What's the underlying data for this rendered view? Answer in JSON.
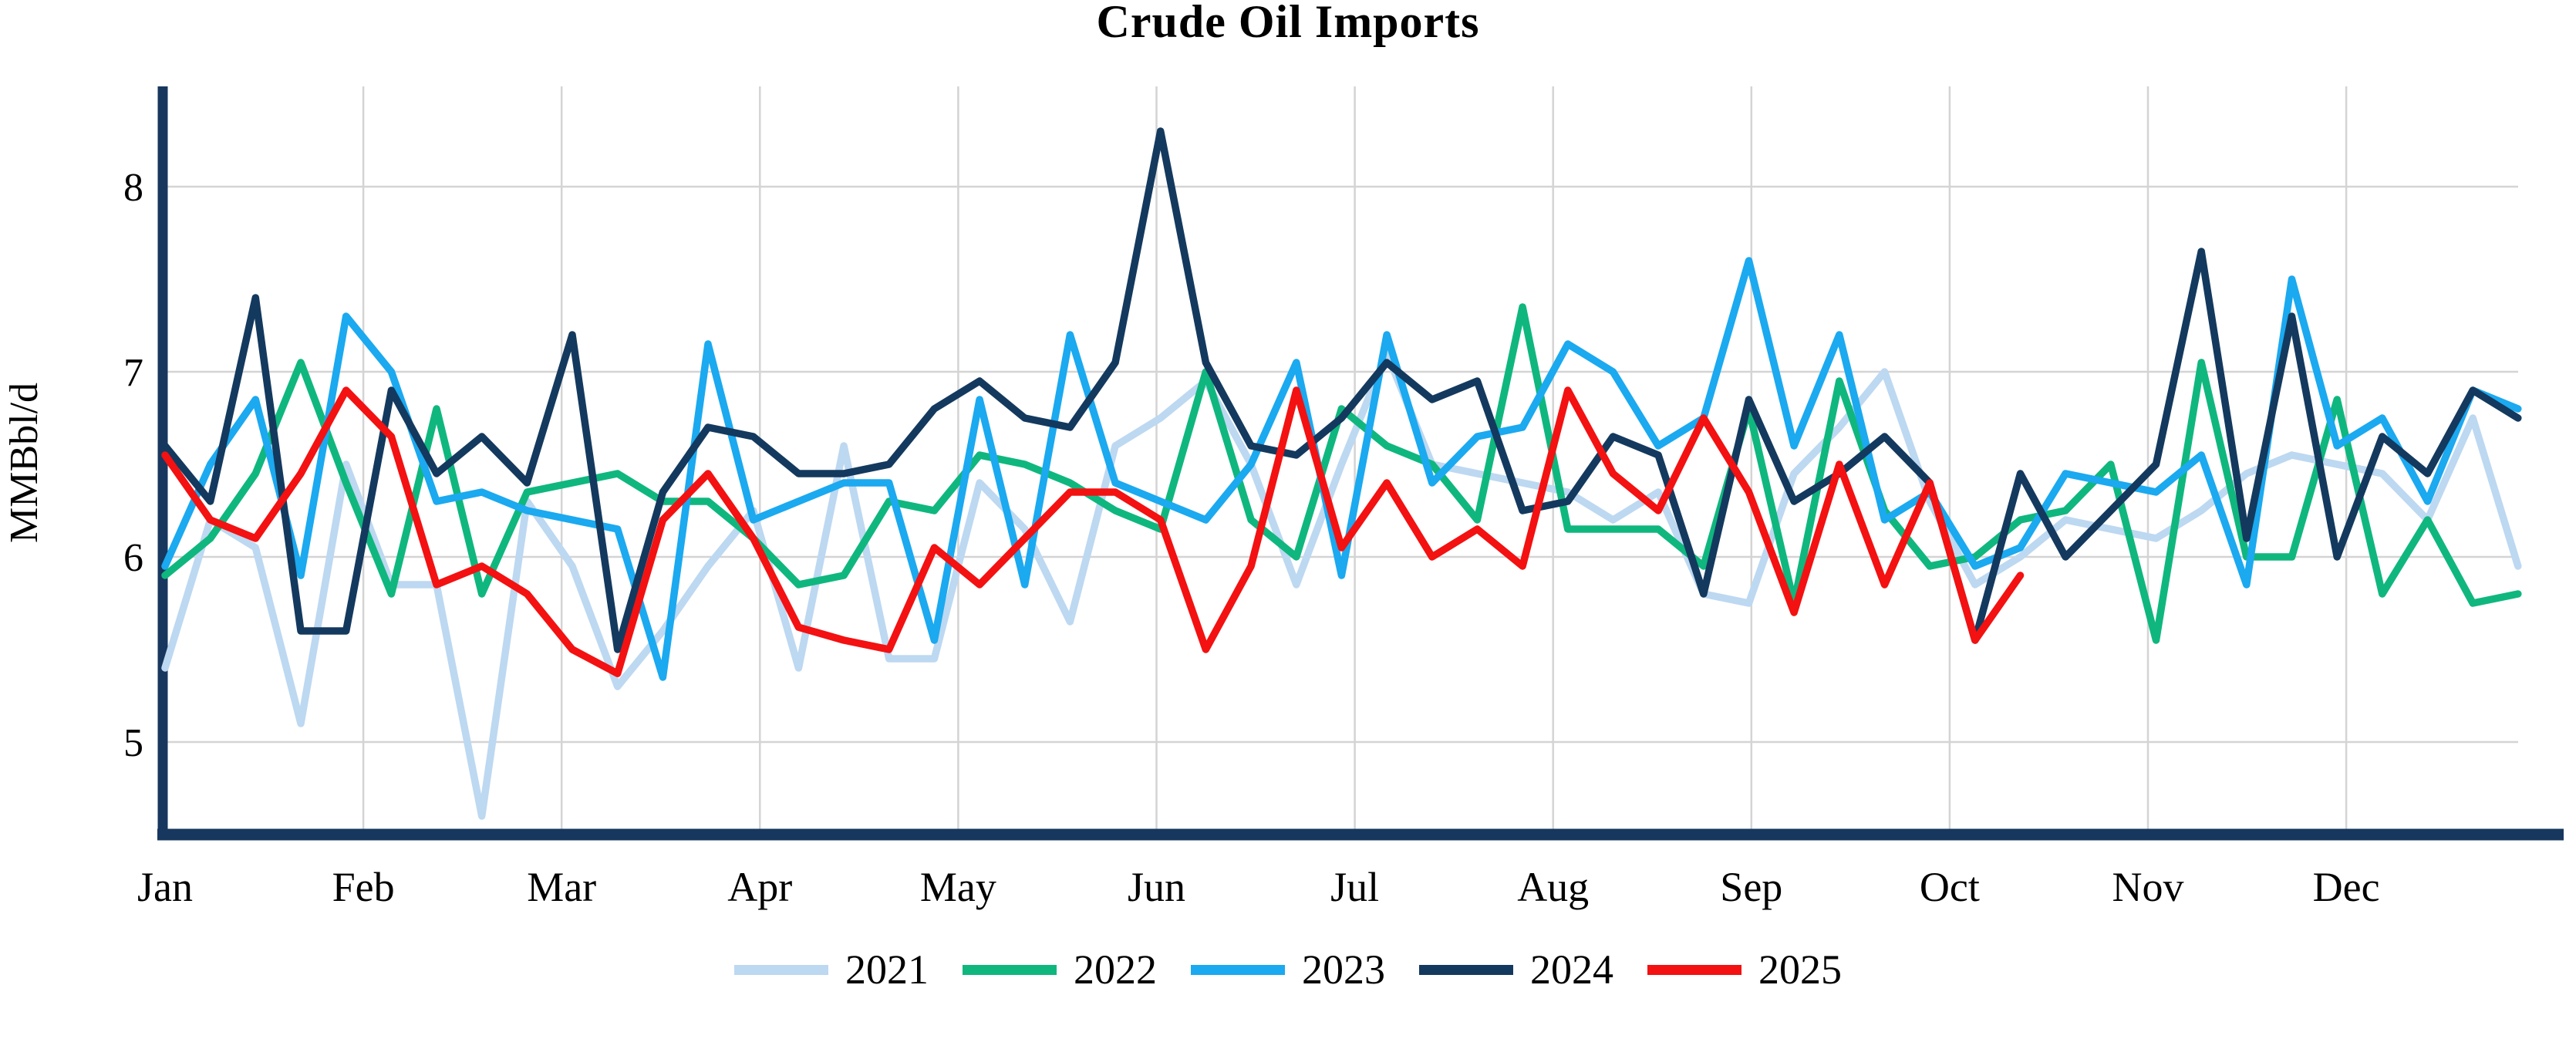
{
  "chart_data": {
    "type": "line",
    "title": "Crude Oil Imports",
    "ylabel": "MMBbl/d",
    "x_tick_labels": [
      "Jan",
      "Feb",
      "Mar",
      "Apr",
      "May",
      "Jun",
      "Jul",
      "Aug",
      "Sep",
      "Oct",
      "Nov",
      "Dec"
    ],
    "y_ticks": [
      8,
      7,
      6,
      5
    ],
    "ylim": [
      4.4,
      8.55
    ],
    "grid": true,
    "legend_position": "bottom",
    "axis_color": "#17375E",
    "grid_color": "#D4D4D4",
    "series": [
      {
        "name": "2021",
        "color": "#BDD8F1",
        "values": [
          5.4,
          6.2,
          6.05,
          5.1,
          6.5,
          5.85,
          5.85,
          4.6,
          6.3,
          5.95,
          5.3,
          5.6,
          5.95,
          6.25,
          5.4,
          6.6,
          5.45,
          5.45,
          6.4,
          6.15,
          5.65,
          6.6,
          6.75,
          6.95,
          6.5,
          5.85,
          6.5,
          7.1,
          6.5,
          6.45,
          6.4,
          6.35,
          6.2,
          6.35,
          5.8,
          5.75,
          6.45,
          6.7,
          7.0,
          6.3,
          5.85,
          6.0,
          6.2,
          6.15,
          6.1,
          6.25,
          6.45,
          6.55,
          6.5,
          6.45,
          6.2,
          6.75,
          5.95
        ]
      },
      {
        "name": "2022",
        "color": "#0FB77E",
        "values": [
          5.9,
          6.1,
          6.45,
          7.05,
          6.4,
          5.8,
          6.8,
          5.8,
          6.35,
          6.4,
          6.45,
          6.3,
          6.3,
          6.1,
          5.85,
          5.9,
          6.3,
          6.25,
          6.55,
          6.5,
          6.4,
          6.25,
          6.15,
          7.0,
          6.2,
          6.0,
          6.8,
          6.6,
          6.5,
          6.2,
          7.35,
          6.15,
          6.15,
          6.15,
          5.95,
          6.8,
          5.75,
          6.95,
          6.25,
          5.95,
          6.0,
          6.2,
          6.25,
          6.5,
          5.55,
          7.05,
          6.0,
          6.0,
          6.85,
          5.8,
          6.2,
          5.75,
          5.8
        ]
      },
      {
        "name": "2023",
        "color": "#1BA9F0",
        "values": [
          5.95,
          6.5,
          6.85,
          5.9,
          7.3,
          7.0,
          6.3,
          6.35,
          6.25,
          6.2,
          6.15,
          5.35,
          7.15,
          6.2,
          6.3,
          6.4,
          6.4,
          5.55,
          6.85,
          5.85,
          7.2,
          6.4,
          6.3,
          6.2,
          6.5,
          7.05,
          5.9,
          7.2,
          6.4,
          6.65,
          6.7,
          7.15,
          7.0,
          6.6,
          6.75,
          7.6,
          6.6,
          7.2,
          6.2,
          6.35,
          5.95,
          6.05,
          6.45,
          6.4,
          6.35,
          6.55,
          5.85,
          7.5,
          6.6,
          6.75,
          6.3,
          6.9,
          6.8
        ]
      },
      {
        "name": "2024",
        "color": "#14395E",
        "values": [
          6.6,
          6.3,
          7.4,
          5.6,
          5.6,
          6.9,
          6.45,
          6.65,
          6.4,
          7.2,
          5.5,
          6.35,
          6.7,
          6.65,
          6.45,
          6.45,
          6.5,
          6.8,
          6.95,
          6.75,
          6.7,
          7.05,
          8.3,
          7.05,
          6.6,
          6.55,
          6.75,
          7.05,
          6.85,
          6.95,
          6.25,
          6.3,
          6.65,
          6.55,
          5.8,
          6.85,
          6.3,
          6.45,
          6.65,
          6.4,
          5.55,
          6.45,
          6.0,
          6.25,
          6.5,
          7.65,
          6.1,
          7.3,
          6.0,
          6.65,
          6.45,
          6.9,
          6.75
        ]
      },
      {
        "name": "2025",
        "color": "#F31111",
        "values": [
          6.55,
          6.2,
          6.1,
          6.45,
          6.9,
          6.65,
          5.85,
          5.95,
          5.8,
          5.5,
          5.37,
          6.2,
          6.45,
          6.1,
          5.62,
          5.55,
          5.5,
          6.05,
          5.85,
          6.1,
          6.35,
          6.35,
          6.2,
          5.5,
          5.95,
          6.9,
          6.05,
          6.4,
          6.0,
          6.15,
          5.95,
          6.9,
          6.45,
          6.25,
          6.75,
          6.35,
          5.7,
          6.5,
          5.85,
          6.4,
          5.55,
          5.9
        ]
      }
    ]
  }
}
